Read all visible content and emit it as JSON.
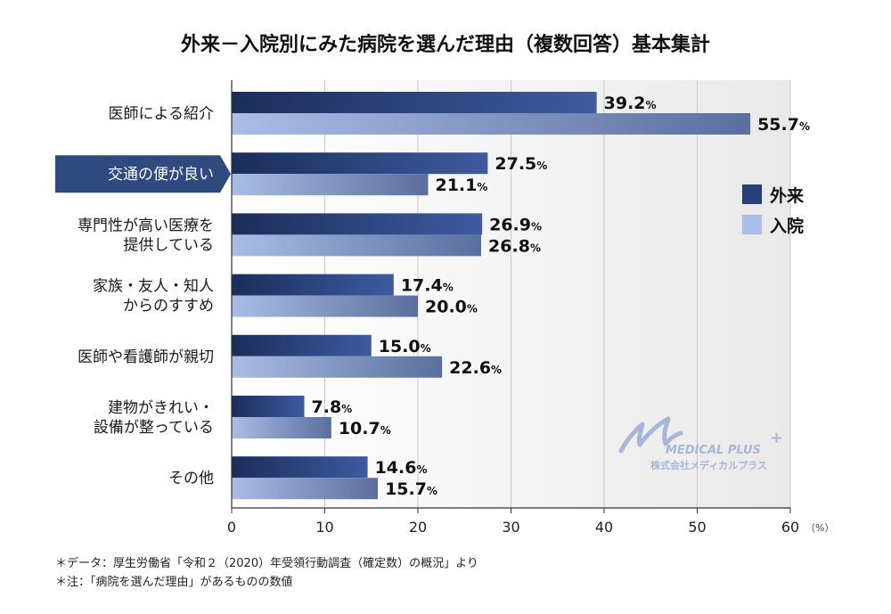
{
  "chart_data": {
    "type": "bar",
    "orientation": "horizontal",
    "title": "外来－入院別にみた病院を選んだ理由（複数回答）基本集計",
    "categories": [
      [
        "医師による紹介"
      ],
      [
        "交通の便が良い"
      ],
      [
        "専門性が高い医療を",
        "提供している"
      ],
      [
        "家族・友人・知人",
        "からのすすめ"
      ],
      [
        "医師や看護師が親切"
      ],
      [
        "建物がきれい・",
        "設備が整っている"
      ],
      [
        "その他"
      ]
    ],
    "highlighted_category_index": 1,
    "series": [
      {
        "name": "外来",
        "values": [
          39.2,
          27.5,
          26.9,
          17.4,
          15.0,
          7.8,
          14.6
        ],
        "color_start": "#1a2e5a",
        "color_end": "#3f5aa0"
      },
      {
        "name": "入院",
        "values": [
          55.7,
          21.1,
          26.8,
          20.0,
          22.6,
          10.7,
          15.7
        ],
        "color_start": "#a9bde6",
        "color_end": "#5a6f9e"
      }
    ],
    "value_suffix": "%",
    "xlim": [
      0,
      60
    ],
    "xticks": [
      0,
      10,
      20,
      30,
      40,
      50,
      60
    ],
    "xunit": "（%）",
    "legend_position": "right",
    "highlight_color": "#2e4a7f"
  },
  "notes": [
    "＊データ：厚生労働省「令和２（2020）年受領行動調査（確定数）の概況」より",
    "＊注：「病院を選んだ理由」があるものの数値"
  ],
  "logo": {
    "name": "MEDICAL PLUS",
    "plus": "+",
    "subtitle": "株式会社メディカルプラス"
  }
}
